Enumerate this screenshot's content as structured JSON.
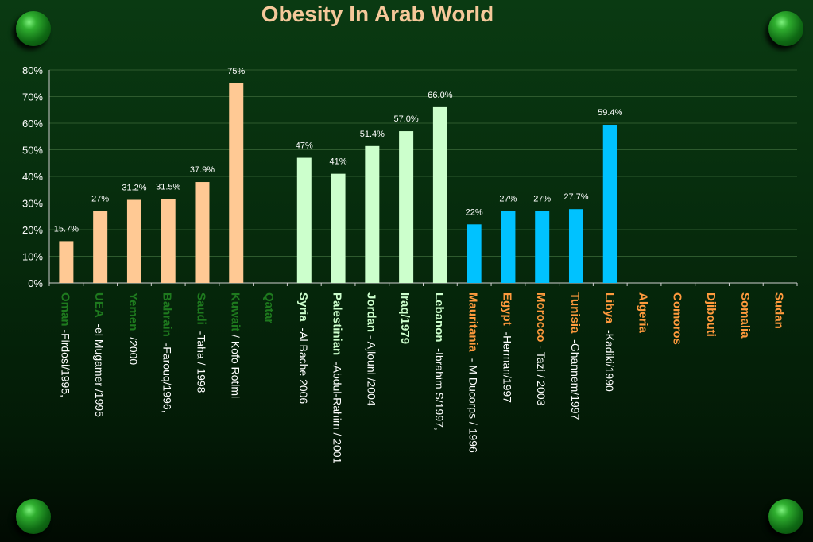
{
  "colors": {
    "gulf": "#ffc994",
    "levant": "#ccffcc",
    "north_africa": "#00c2ff",
    "label_dark_green": "#1e7a1e",
    "label_light": "#ccffcc",
    "label_orange": "#ff9a3d",
    "label_white": "#ffffff",
    "grid": "#2e5a2e",
    "title": "#f5c89a"
  },
  "chart_data": {
    "type": "bar",
    "title": "Obesity In Arab World",
    "ylim": [
      0,
      80
    ],
    "yticks": [
      "0%",
      "10%",
      "20%",
      "30%",
      "40%",
      "50%",
      "60%",
      "70%",
      "80%"
    ],
    "grid": true,
    "legend": "none",
    "bars": [
      {
        "country": "Oman",
        "source": " -Firdosi/1995,",
        "value": 15.7,
        "label": "15.7%",
        "group": "gulf"
      },
      {
        "country": "UEA",
        "source": "  -el Mugamer /1995",
        "value": 27,
        "label": "27%",
        "group": "gulf"
      },
      {
        "country": "Yemen",
        "source": "  /2000",
        "value": 31.2,
        "label": "31.2%",
        "group": "gulf"
      },
      {
        "country": "Bahrain",
        "source": "  -Farouq/1996,",
        "value": 31.5,
        "label": "31.5%",
        "group": "gulf"
      },
      {
        "country": "Saudi",
        "source": "  -Taha / 1998",
        "value": 37.9,
        "label": "37.9%",
        "group": "gulf"
      },
      {
        "country": "Kuwait",
        "source": " / Kofo Rotimi",
        "value": 75,
        "label": "75%",
        "group": "gulf"
      },
      {
        "country": "Qatar",
        "source": "",
        "value": null,
        "label": "",
        "group": "gulf"
      },
      {
        "country": "Syria",
        "source": "  -Al Bache 2006",
        "value": 47,
        "label": "47%",
        "group": "levant"
      },
      {
        "country": "Palestinian",
        "source": "  -Abdul-Rahim / 2001",
        "value": 41,
        "label": "41%",
        "group": "levant"
      },
      {
        "country": "Jordan",
        "source": " - Ajlouni /2004",
        "value": 51.4,
        "label": "51.4%",
        "group": "levant"
      },
      {
        "country": "Iraq/1979",
        "source": "",
        "value": 57.0,
        "label": "57.0%",
        "group": "levant"
      },
      {
        "country": "Lebanon",
        "source": "  -Ibrahim S/1997,",
        "value": 66.0,
        "label": "66.0%",
        "group": "levant"
      },
      {
        "country": "Mauritania",
        "source": "  - M Ducorps / 1996",
        "value": 22,
        "label": "22%",
        "group": "north_africa"
      },
      {
        "country": "Egypt",
        "source": "  -Herman/1997",
        "value": 27,
        "label": "27%",
        "group": "north_africa"
      },
      {
        "country": "Morocco",
        "source": " - Tazi / 2003",
        "value": 27,
        "label": "27%",
        "group": "north_africa"
      },
      {
        "country": "Tunisia",
        "source": "  -Ghannem/1997",
        "value": 27.7,
        "label": "27.7%",
        "group": "north_africa"
      },
      {
        "country": "Libya",
        "source": "  -Kadiki/1990",
        "value": 59.4,
        "label": "59.4%",
        "group": "north_africa"
      },
      {
        "country": "Algeria",
        "source": "",
        "value": null,
        "label": "",
        "group": "north_africa"
      },
      {
        "country": "Comoros",
        "source": "",
        "value": null,
        "label": "",
        "group": "north_africa"
      },
      {
        "country": "Djibouti",
        "source": "",
        "value": null,
        "label": "",
        "group": "north_africa"
      },
      {
        "country": "Somalia",
        "source": "",
        "value": null,
        "label": "",
        "group": "north_africa"
      },
      {
        "country": "Sudan",
        "source": "",
        "value": null,
        "label": "",
        "group": "north_africa"
      }
    ]
  }
}
